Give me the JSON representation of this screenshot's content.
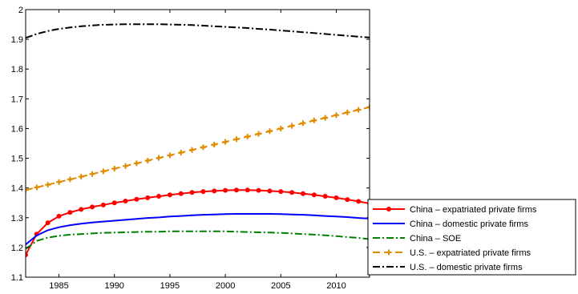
{
  "chart_data": {
    "type": "line",
    "title": "",
    "xlabel": "",
    "ylabel": "",
    "xlim": [
      1982,
      2013
    ],
    "ylim": [
      1.1,
      2.0
    ],
    "xticks": [
      1985,
      1990,
      1995,
      2000,
      2005,
      2010
    ],
    "xtick_labels": [
      "1985",
      "1990",
      "1995",
      "2000",
      "2005",
      "2010"
    ],
    "yticks": [
      1.1,
      1.2,
      1.3,
      1.4,
      1.5,
      1.6,
      1.7,
      1.8,
      1.9,
      2.0
    ],
    "ytick_labels": [
      "1.1",
      "1.2",
      "1.3",
      "1.4",
      "1.5",
      "1.6",
      "1.7",
      "1.8",
      "1.9",
      "2"
    ],
    "grid": false,
    "legend_position": "bottom-right",
    "x": [
      1982,
      1983,
      1984,
      1985,
      1986,
      1987,
      1988,
      1989,
      1990,
      1991,
      1992,
      1993,
      1994,
      1995,
      1996,
      1997,
      1998,
      1999,
      2000,
      2001,
      2002,
      2003,
      2004,
      2005,
      2006,
      2007,
      2008,
      2009,
      2010,
      2011,
      2012,
      2013
    ],
    "series": [
      {
        "name": "China – expatriated private firms",
        "color": "#ff0000",
        "style": "solid-dot",
        "values": [
          1.175,
          1.245,
          1.283,
          1.305,
          1.318,
          1.328,
          1.336,
          1.343,
          1.35,
          1.356,
          1.362,
          1.367,
          1.372,
          1.377,
          1.381,
          1.385,
          1.388,
          1.39,
          1.392,
          1.393,
          1.393,
          1.392,
          1.39,
          1.388,
          1.385,
          1.381,
          1.377,
          1.372,
          1.367,
          1.361,
          1.355,
          1.348
        ]
      },
      {
        "name": "China – domestic private firms",
        "color": "#0000ff",
        "style": "solid",
        "values": [
          1.21,
          1.24,
          1.258,
          1.268,
          1.275,
          1.28,
          1.284,
          1.287,
          1.29,
          1.293,
          1.296,
          1.299,
          1.301,
          1.304,
          1.306,
          1.308,
          1.31,
          1.311,
          1.312,
          1.313,
          1.313,
          1.313,
          1.313,
          1.312,
          1.311,
          1.31,
          1.308,
          1.306,
          1.304,
          1.302,
          1.299,
          1.297
        ]
      },
      {
        "name": "China – SOE",
        "color": "#008000",
        "style": "dashdot",
        "values": [
          1.195,
          1.222,
          1.233,
          1.239,
          1.243,
          1.245,
          1.247,
          1.249,
          1.25,
          1.251,
          1.252,
          1.253,
          1.253,
          1.254,
          1.254,
          1.254,
          1.254,
          1.254,
          1.254,
          1.253,
          1.252,
          1.251,
          1.25,
          1.249,
          1.247,
          1.245,
          1.243,
          1.241,
          1.238,
          1.235,
          1.232,
          1.228
        ]
      },
      {
        "name": "U.S. – expatriated private firms",
        "color": "#e08a00",
        "style": "dashed-plus",
        "values": [
          1.393,
          1.402,
          1.411,
          1.42,
          1.429,
          1.438,
          1.447,
          1.456,
          1.465,
          1.474,
          1.483,
          1.492,
          1.501,
          1.51,
          1.519,
          1.528,
          1.537,
          1.546,
          1.555,
          1.564,
          1.573,
          1.582,
          1.591,
          1.6,
          1.609,
          1.618,
          1.627,
          1.636,
          1.645,
          1.654,
          1.663,
          1.672
        ]
      },
      {
        "name": "U.S. – domestic private firms",
        "color": "#000000",
        "style": "dashdot",
        "values": [
          1.905,
          1.918,
          1.928,
          1.935,
          1.94,
          1.944,
          1.947,
          1.949,
          1.95,
          1.951,
          1.951,
          1.951,
          1.951,
          1.95,
          1.949,
          1.948,
          1.946,
          1.944,
          1.942,
          1.94,
          1.938,
          1.935,
          1.933,
          1.93,
          1.927,
          1.924,
          1.921,
          1.918,
          1.915,
          1.912,
          1.909,
          1.906
        ]
      }
    ]
  }
}
